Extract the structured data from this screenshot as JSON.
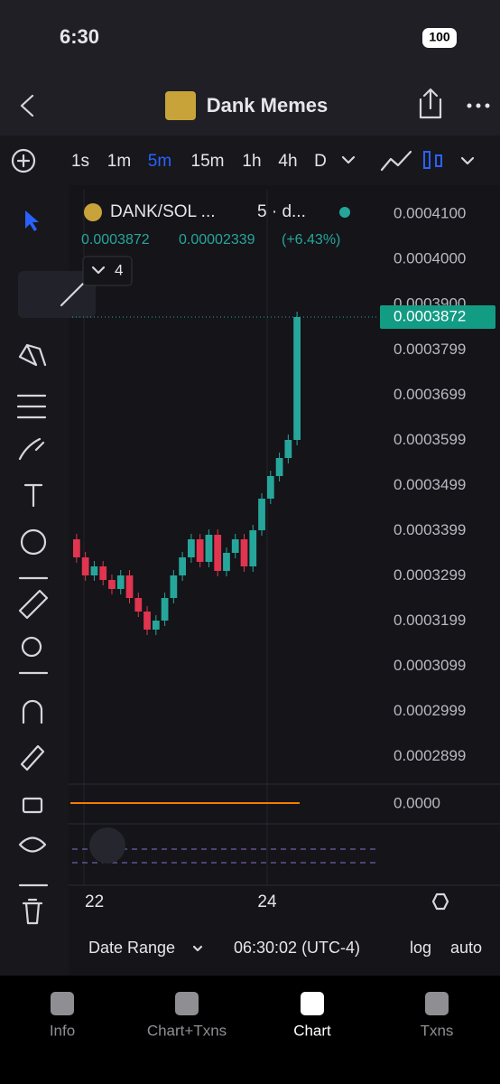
{
  "status_bar": {
    "time": "6:30",
    "battery": "100"
  },
  "header": {
    "title": "Dank Memes"
  },
  "intervals": [
    "1s",
    "1m",
    "5m",
    "15m",
    "1h",
    "4h",
    "D"
  ],
  "active_interval": "5m",
  "legend": {
    "symbol": "DANK/SOL ...",
    "resolution": "5 · d...",
    "change": "0.00002339",
    "percent": "(+6.43%)",
    "indicators": "4"
  },
  "chart_data": {
    "type": "candlestick",
    "open": [
      0.000338,
      0.000334,
      0.00033,
      0.000332,
      0.000329,
      0.000327,
      0.00033,
      0.000325,
      0.000322,
      0.000318,
      0.00032,
      0.000325,
      0.00033,
      0.000334,
      0.000338,
      0.000333,
      0.000339,
      0.000331,
      0.000335,
      0.000338,
      0.000332,
      0.00034,
      0.000347,
      0.000352,
      0.000356,
      0.00036
    ],
    "close": [
      0.000334,
      0.00033,
      0.000332,
      0.000329,
      0.000327,
      0.00033,
      0.000325,
      0.000322,
      0.000318,
      0.00032,
      0.000325,
      0.00033,
      0.000334,
      0.000338,
      0.000333,
      0.000339,
      0.000331,
      0.000335,
      0.000338,
      0.000332,
      0.00034,
      0.000347,
      0.000352,
      0.000356,
      0.00036,
      0.0003872
    ],
    "up_color": "#26a69a",
    "down_color": "#e0344f",
    "ylim": [
      0.0002838,
      0.0004154
    ],
    "yticks": [
      {
        "value": 0.00041,
        "label": "0.0004100"
      },
      {
        "value": 0.0004,
        "label": "0.0004000"
      },
      {
        "value": 0.00039,
        "label": "0.0003900"
      },
      0.0003799,
      0.0003699,
      0.0003599,
      0.0003499,
      0.0003399,
      0.0003299,
      0.0003199,
      0.0003099,
      0.0002999,
      0.0002899
    ],
    "last_price": 0.0003872,
    "x_labels": [
      "22",
      "24"
    ],
    "indicator_value": "0.0000"
  },
  "footer": {
    "date_range": "Date Range",
    "clock": "06:30:02 (UTC-4)",
    "log": "log",
    "auto": "auto"
  },
  "tabs": [
    "Info",
    "Chart+Txns",
    "Chart",
    "Txns"
  ],
  "active_tab": "Chart"
}
